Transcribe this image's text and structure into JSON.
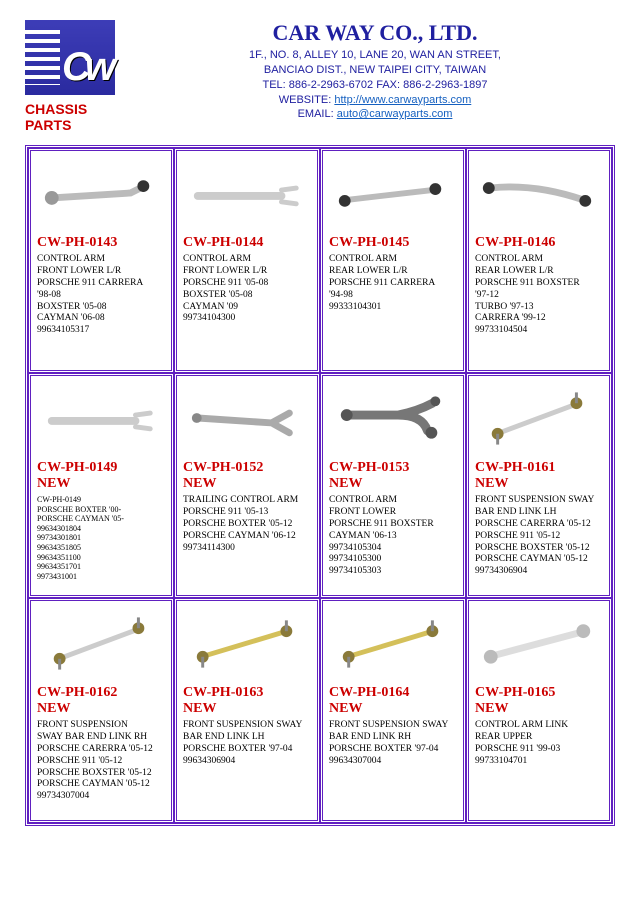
{
  "header": {
    "logo_text": "Cw",
    "chassis_label": "CHASSIS PARTS",
    "company_name": "CAR WAY CO., LTD.",
    "address1": "1F., NO. 8, ALLEY 10, LANE 20, WAN AN STREET,",
    "address2": "BANCIAO DIST., NEW TAIPEI CITY, TAIWAN",
    "tel_fax": "TEL: 886-2-2963-6702    FAX: 886-2-2963-1897",
    "website_label": "WEBSITE: ",
    "website_url": "http://www.carwayparts.com",
    "email_label": "EMAIL: ",
    "email": "auto@carwayparts.com"
  },
  "products": [
    {
      "sku": "CW-PH-0143",
      "is_new": false,
      "desc": "CONTROL ARM\nFRONT LOWER L/R\nPORSCHE 911 CARRERA\n'98-08\nBOXSTER '05-08\nCAYMAN '06-08\n99634105317",
      "img": "arm1"
    },
    {
      "sku": "CW-PH-0144",
      "is_new": false,
      "desc": "CONTROL ARM\nFRONT LOWER L/R\nPORSCHE 911 '05-08\nBOXSTER '05-08\nCAYMAN '09\n99734104300",
      "img": "arm2"
    },
    {
      "sku": "CW-PH-0145",
      "is_new": false,
      "desc": "CONTROL ARM\nREAR LOWER L/R\nPORSCHE 911 CARRERA\n'94-98\n99333104301",
      "img": "arm3"
    },
    {
      "sku": "CW-PH-0146",
      "is_new": false,
      "desc": "CONTROL ARM\nREAR LOWER L/R\nPORSCHE 911 BOXSTER\n'97-12\nTURBO '97-13\nCARRERA '99-12\n99733104504",
      "img": "arm4"
    },
    {
      "sku": "CW-PH-0149",
      "is_new": true,
      "desc": "CW-PH-0149\nPORSCHE BOXTER '00-\nPORSCHE CAYMAN '05-\n99634301804\n99734301801\n99634351805\n99634351100\n99634351701\n9973431001",
      "small": true,
      "img": "arm2"
    },
    {
      "sku": "CW-PH-0152",
      "is_new": true,
      "desc": "TRAILING CONTROL ARM\nPORSCHE 911 '05-13\nPORSCHE BOXTER '05-12\nPORSCHE CAYMAN '06-12\n99734114300",
      "img": "arm5"
    },
    {
      "sku": "CW-PH-0153",
      "is_new": true,
      "desc": "CONTROL ARM\nFRONT LOWER\nPORSCHE 911 BOXSTER\nCAYMAN '06-13\n99734105304\n99734105300\n99734105303",
      "img": "arm6"
    },
    {
      "sku": "CW-PH-0161",
      "is_new": true,
      "desc": "FRONT SUSPENSION SWAY\nBAR END LINK LH\nPORSCHE CARERRA '05-12\nPORSCHE 911 '05-12\nPORSCHE BOXSTER '05-12\nPORSCHE CAYMAN '05-12\n99734306904",
      "img": "link1"
    },
    {
      "sku": "CW-PH-0162",
      "is_new": true,
      "desc": "FRONT SUSPENSION\nSWAY BAR END LINK RH\nPORSCHE CARERRA '05-12\nPORSCHE 911 '05-12\nPORSCHE BOXSTER '05-12\nPORSCHE CAYMAN '05-12\n99734307004",
      "img": "link1"
    },
    {
      "sku": "CW-PH-0163",
      "is_new": true,
      "desc": "FRONT SUSPENSION SWAY\nBAR END LINK LH\nPORSCHE BOXTER '97-04\n99634306904",
      "img": "link2"
    },
    {
      "sku": "CW-PH-0164",
      "is_new": true,
      "desc": "FRONT SUSPENSION SWAY\nBAR END LINK RH\nPORSCHE BOXTER '97-04\n99634307004",
      "img": "link2"
    },
    {
      "sku": "CW-PH-0165",
      "is_new": true,
      "desc": "CONTROL ARM LINK\nREAR UPPER\nPORSCHE 911 '99-03\n99733104701",
      "img": "arm7"
    }
  ],
  "new_label": "NEW",
  "svg_defs": {
    "arm1": "<path d='M15,40 L95,35 L105,30' stroke='#bbb' stroke-width='7' fill='none' stroke-linecap='round'/><circle cx='15' cy='40' r='7' fill='#999'/><circle cx='108' cy='28' r='6' fill='#333'/>",
    "arm2": "<path d='M15,38 L100,38' stroke='#ccc' stroke-width='8' fill='none' stroke-linecap='round'/><path d='M100,32 L115,30 M100,44 L115,46' stroke='#ccc' stroke-width='5' stroke-linecap='round'/>",
    "arm3": "<path d='M18,42 L105,32' stroke='#bbb' stroke-width='6' fill='none' stroke-linecap='round'/><circle cx='16' cy='43' r='6' fill='#333'/><circle cx='108' cy='31' r='6' fill='#333'/>",
    "arm4": "<path d='M15,30 Q60,25 110,42' stroke='#bbb' stroke-width='7' fill='none' stroke-linecap='round'/><circle cx='14' cy='30' r='6' fill='#333'/><circle cx='112' cy='43' r='6' fill='#333'/>",
    "arm5": "<path d='M15,35 L90,40 L108,30 M90,40 L108,50' stroke='#aaa' stroke-width='7' fill='none' stroke-linecap='round'/><circle cx='14' cy='35' r='5' fill='#888'/>",
    "arm6": "<path d='M20,32 L70,32 Q95,32 100,48 M70,32 Q90,28 105,20' stroke='#777' stroke-width='9' fill='none' stroke-linecap='round' stroke-linejoin='round'/><circle cx='18' cy='32' r='6' fill='#555'/><circle cx='104' cy='50' r='6' fill='#555'/><circle cx='108' cy='18' r='5' fill='#555'/>",
    "arm7": "<path d='M18,48 L108,24' stroke='#ddd' stroke-width='7' fill='none' stroke-linecap='round'/><circle cx='16' cy='49' r='7' fill='#bbb'/><circle cx='110' cy='23' r='7' fill='#bbb'/>",
    "link1": "<path d='M25,50 L100,22' stroke='#ccc' stroke-width='5' fill='none' stroke-linecap='round'/><circle cx='23' cy='51' r='6' fill='#8a7a3a'/><circle cx='103' cy='20' r='6' fill='#8a7a3a'/><line x1='23' y1='51' x2='23' y2='62' stroke='#888' stroke-width='3'/><line x1='103' y1='20' x2='103' y2='9' stroke='#888' stroke-width='3'/>",
    "link2": "<path d='M22,48 L102,24' stroke='#d4c05a' stroke-width='5' fill='none' stroke-linecap='round'/><circle cx='20' cy='49' r='6' fill='#8a7a3a'/><circle cx='105' cy='23' r='6' fill='#8a7a3a'/><line x1='20' y1='49' x2='20' y2='60' stroke='#888' stroke-width='3'/><line x1='105' y1='23' x2='105' y2='12' stroke='#888' stroke-width='3'/>"
  }
}
